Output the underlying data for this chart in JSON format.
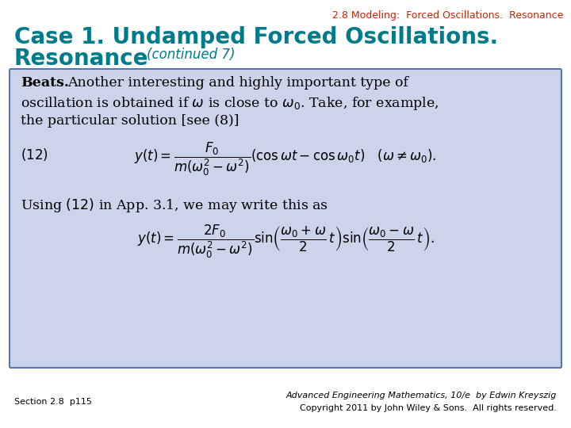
{
  "title_top": "2.8 Modeling:  Forced Oscillations.  Resonance",
  "title_top_color": "#cc2200",
  "title_main1": "Case 1. Undamped Forced Oscillations.",
  "title_main2": "Resonance",
  "title_continued": "(continued 7)",
  "title_main_color": "#007b8a",
  "bg_color": "#ffffff",
  "box_bg_color": "#ccd4ec",
  "box_border_color": "#5577aa",
  "footer_left": "Section 2.8  p115",
  "footer_right1": "Advanced Engineering Mathematics, 10/e  by Edwin Kreyszig",
  "footer_right2": "Copyright 2011 by John Wiley & Sons.  All rights reserved.",
  "text_color": "#000000",
  "body_text_color": "#000000",
  "fig_width": 7.2,
  "fig_height": 5.4,
  "dpi": 100
}
